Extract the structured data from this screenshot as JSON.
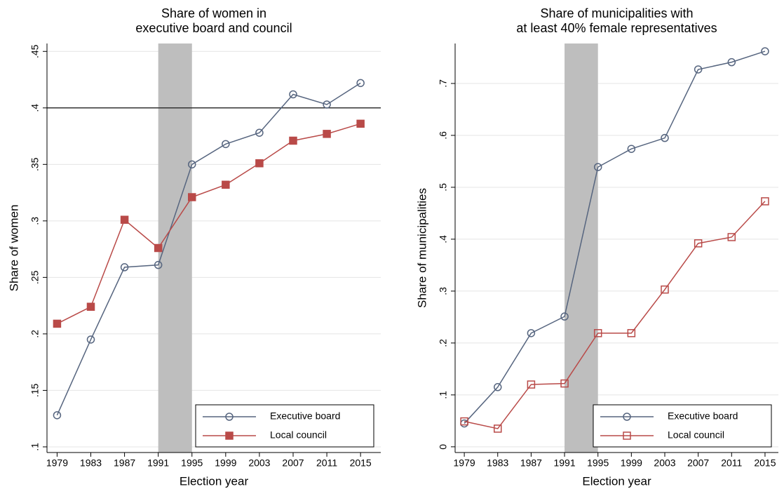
{
  "chart_data": [
    {
      "type": "line",
      "title": [
        "Share of women in",
        "executive board and council"
      ],
      "x_label": "Election year",
      "y_label": "Share of women",
      "x": [
        1979,
        1983,
        1987,
        1991,
        1995,
        1999,
        2003,
        2007,
        2011,
        2015
      ],
      "series": [
        {
          "name": "Executive board",
          "color": "#56657f",
          "marker": "circle-open",
          "values": [
            0.128,
            0.195,
            0.259,
            0.261,
            0.35,
            0.368,
            0.378,
            0.412,
            0.403,
            0.422
          ]
        },
        {
          "name": "Local council",
          "color": "#b94a48",
          "marker": "square-filled",
          "values": [
            0.209,
            0.224,
            0.301,
            0.276,
            0.321,
            0.332,
            0.351,
            0.371,
            0.377,
            0.386
          ]
        }
      ],
      "xlim": [
        1977.8,
        2017.4
      ],
      "xticks": [
        1979,
        1983,
        1987,
        1991,
        1995,
        1999,
        2003,
        2007,
        2011,
        2015
      ],
      "ylim": [
        0.095,
        0.457
      ],
      "yticks": [
        {
          "value": 0.1,
          "label": ".1"
        },
        {
          "value": 0.15,
          "label": ".15"
        },
        {
          "value": 0.2,
          "label": ".2"
        },
        {
          "value": 0.25,
          "label": ".25"
        },
        {
          "value": 0.3,
          "label": ".3"
        },
        {
          "value": 0.35,
          "label": ".35"
        },
        {
          "value": 0.4,
          "label": ".4"
        },
        {
          "value": 0.45,
          "label": ".45"
        }
      ],
      "grid": true,
      "shade": [
        1991,
        1995
      ],
      "hline": 0.4,
      "legend": "bottom-right"
    },
    {
      "type": "line",
      "title": [
        "Share of municipalities with",
        "at least 40% female representatives"
      ],
      "x_label": "Election year",
      "y_label": "Share of municipalities",
      "x": [
        1979,
        1983,
        1987,
        1991,
        1995,
        1999,
        2003,
        2007,
        2011,
        2015
      ],
      "series": [
        {
          "name": "Executive board",
          "color": "#56657f",
          "marker": "circle-open",
          "values": [
            0.045,
            0.115,
            0.219,
            0.251,
            0.539,
            0.574,
            0.595,
            0.727,
            0.741,
            0.762
          ]
        },
        {
          "name": "Local council",
          "color": "#b94a48",
          "marker": "square-open",
          "values": [
            0.049,
            0.035,
            0.12,
            0.122,
            0.219,
            0.219,
            0.303,
            0.392,
            0.404,
            0.473
          ]
        }
      ],
      "xlim": [
        1977.9,
        2016.6
      ],
      "xticks": [
        1979,
        1983,
        1987,
        1991,
        1995,
        1999,
        2003,
        2007,
        2011,
        2015
      ],
      "ylim": [
        -0.011,
        0.777
      ],
      "yticks": [
        0,
        {
          "value": 0.1,
          "label": ".1"
        },
        {
          "value": 0.2,
          "label": ".2"
        },
        {
          "value": 0.3,
          "label": ".3"
        },
        {
          "value": 0.4,
          "label": ".4"
        },
        {
          "value": 0.5,
          "label": ".5"
        },
        {
          "value": 0.6,
          "label": ".6"
        },
        {
          "value": 0.7,
          "label": ".7"
        }
      ],
      "grid": true,
      "shade": [
        1991,
        1995
      ],
      "legend": "bottom-right"
    }
  ]
}
